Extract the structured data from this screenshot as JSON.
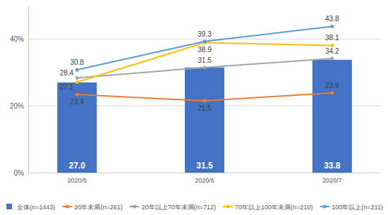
{
  "chart_data": {
    "type": "bar",
    "categories": [
      "2020/5",
      "2020/6",
      "2020/7"
    ],
    "series": [
      {
        "name": "全体(n=1443)",
        "type": "bar",
        "color": "#4472c4",
        "values": [
          27.0,
          31.5,
          33.8
        ],
        "value_labels": [
          "27.0",
          "31.5",
          "33.8"
        ]
      },
      {
        "name": "20年未満(n=261)",
        "type": "line",
        "color": "#ed7d31",
        "marker": "circle",
        "values": [
          23.4,
          21.5,
          23.9
        ]
      },
      {
        "name": "20年以上70年未満(n=712)",
        "type": "line",
        "color": "#a5a5a5",
        "marker": "circle",
        "values": [
          28.4,
          31.5,
          34.2
        ]
      },
      {
        "name": "70年以上100年未満(n=210)",
        "type": "line",
        "color": "#ffc000",
        "marker": "circle",
        "values": [
          27.1,
          38.9,
          38.1
        ]
      },
      {
        "name": "100年以上(n=211)",
        "type": "line",
        "color": "#5b9bd5",
        "marker": "circle",
        "values": [
          30.8,
          39.3,
          43.8
        ]
      }
    ],
    "ylim": [
      0,
      50
    ],
    "yticks": [
      {
        "value": 0,
        "label": "0%"
      },
      {
        "value": 20,
        "label": "20%"
      },
      {
        "value": 40,
        "label": "40%"
      }
    ],
    "grid": true,
    "legend": "bottom",
    "data_labels": true
  }
}
